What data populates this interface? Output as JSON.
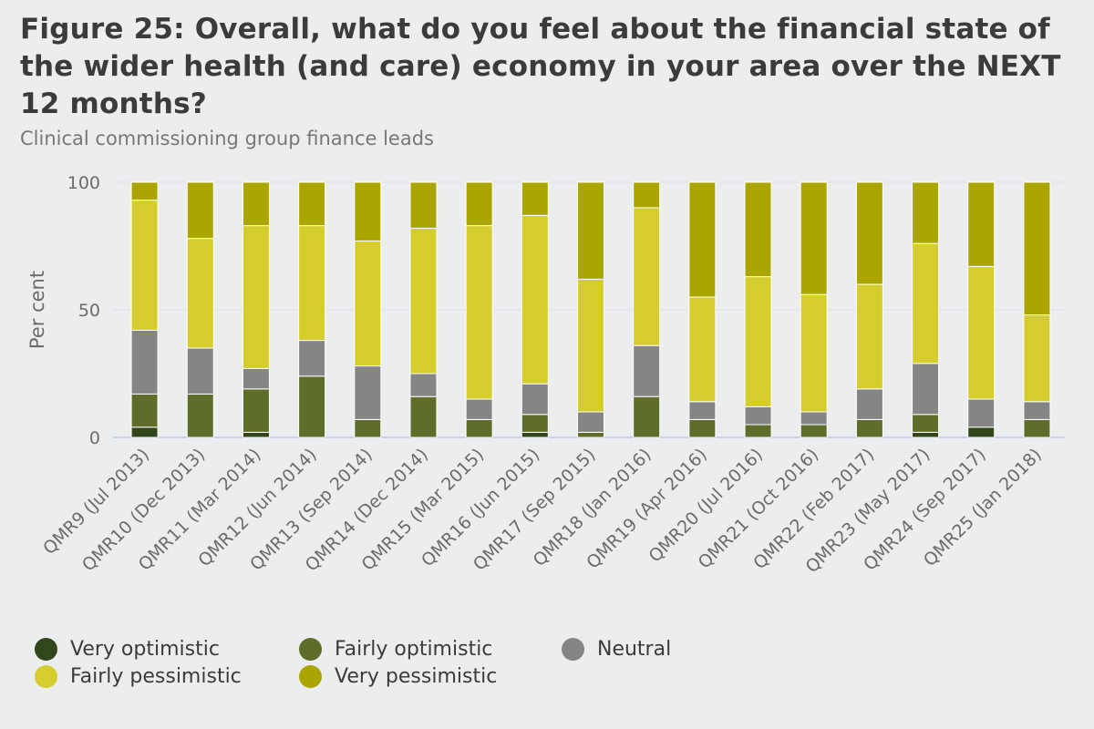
{
  "chart_data": {
    "type": "bar",
    "stacked": true,
    "title": "Figure 25: Overall, what do you feel about the financial state of the wider health (and care) economy in your area over the NEXT 12 months?",
    "subtitle": "Clinical commissioning group finance leads",
    "ylabel": "Per cent",
    "xlabel": "",
    "ylim": [
      0,
      100
    ],
    "yticks": [
      0,
      50,
      100
    ],
    "grid": true,
    "legend_position": "bottom",
    "categories": [
      "QMR9 (Jul 2013)",
      "QMR10 (Dec 2013)",
      "QMR11 (Mar 2014)",
      "QMR12 (Jun 2014)",
      "QMR13 (Sep 2014)",
      "QMR14 (Dec 2014)",
      "QMR15 (Mar 2015)",
      "QMR16 (Jun 2015)",
      "QMR17 (Sep 2015)",
      "QMR18 (Jan 2016)",
      "QMR19 (Apr 2016)",
      "QMR20 (Jul 2016)",
      "QMR21 (Oct 2016)",
      "QMR22 (Feb 2017)",
      "QMR23 (May 2017)",
      "QMR24 (Sep 2017)",
      "QMR25 (Jan 2018)"
    ],
    "series": [
      {
        "name": "Very optimistic",
        "color": "#33451a",
        "values": [
          4,
          0,
          2,
          0,
          0,
          0,
          0,
          2,
          0,
          0,
          0,
          0,
          0,
          0,
          2,
          4,
          0
        ]
      },
      {
        "name": "Fairly optimistic",
        "color": "#5f6d2b",
        "values": [
          13,
          17,
          17,
          24,
          7,
          16,
          7,
          7,
          2,
          16,
          7,
          5,
          5,
          7,
          7,
          0,
          7
        ]
      },
      {
        "name": "Neutral",
        "color": "#858585",
        "values": [
          25,
          18,
          8,
          14,
          21,
          9,
          8,
          12,
          8,
          20,
          7,
          7,
          5,
          12,
          20,
          11,
          7
        ]
      },
      {
        "name": "Fairly pessimistic",
        "color": "#d5cc2d",
        "values": [
          51,
          43,
          56,
          45,
          49,
          57,
          68,
          66,
          52,
          54,
          41,
          51,
          46,
          41,
          47,
          52,
          34
        ]
      },
      {
        "name": "Very pessimistic",
        "color": "#aba500",
        "values": [
          7,
          22,
          17,
          17,
          23,
          18,
          17,
          13,
          38,
          10,
          45,
          37,
          44,
          40,
          24,
          33,
          52
        ]
      }
    ]
  }
}
